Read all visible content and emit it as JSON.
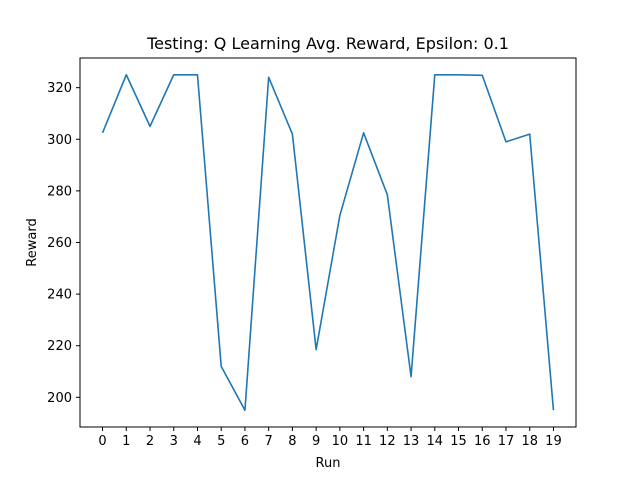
{
  "chart_data": {
    "type": "line",
    "title": "Testing: Q Learning Avg. Reward, Epsilon: 0.1",
    "xlabel": "Run",
    "ylabel": "Reward",
    "x": [
      0,
      1,
      2,
      3,
      4,
      5,
      6,
      7,
      8,
      9,
      10,
      11,
      12,
      13,
      14,
      15,
      16,
      17,
      18,
      19
    ],
    "x_tick_labels": [
      "0",
      "1",
      "2",
      "3",
      "4",
      "5",
      "6",
      "7",
      "8",
      "9",
      "10",
      "11",
      "12",
      "13",
      "14",
      "15",
      "16",
      "17",
      "18",
      "19"
    ],
    "y_ticks": [
      200,
      220,
      240,
      260,
      280,
      300,
      320
    ],
    "y_tick_labels": [
      "200",
      "220",
      "240",
      "260",
      "280",
      "300",
      "320"
    ],
    "xlim": [
      -0.95,
      19.95
    ],
    "ylim": [
      188.5,
      331.5
    ],
    "grid": false,
    "legend": "none",
    "series": [
      {
        "color": "#1f77b4",
        "values": [
          302.5,
          325,
          305,
          325,
          325,
          212,
          195,
          324,
          302,
          218.5,
          270.5,
          302.5,
          278.5,
          208,
          325,
          325,
          324.8,
          299,
          302,
          195
        ]
      }
    ]
  }
}
